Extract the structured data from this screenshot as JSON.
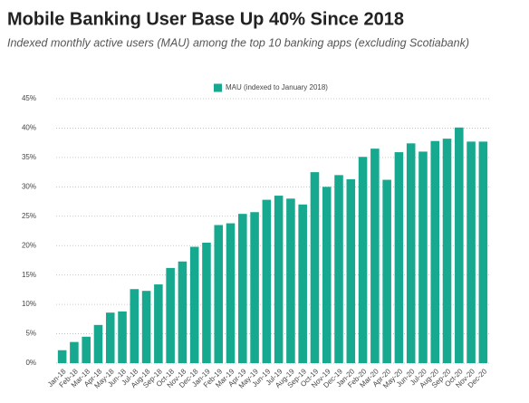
{
  "chart_data": {
    "type": "bar",
    "title": "Mobile Banking User Base Up 40% Since 2018",
    "subtitle": "Indexed monthly active users (MAU) among the top 10 banking apps (excluding Scotiabank)",
    "categories": [
      "Jan-18",
      "Feb-18",
      "Mar-18",
      "Apr-18",
      "May-18",
      "Jun-18",
      "Jul-18",
      "Aug-18",
      "Sep-18",
      "Oct-18",
      "Nov-18",
      "Dec-18",
      "Jan-19",
      "Feb-19",
      "Mar-19",
      "Apr-19",
      "May-19",
      "Jun-19",
      "Jul-19",
      "Aug-19",
      "Sep-19",
      "Oct-19",
      "Nov-19",
      "Dec-19",
      "Jan-20",
      "Feb-20",
      "Mar-20",
      "Apr-20",
      "May-20",
      "Jun-20",
      "Jul-20",
      "Aug-20",
      "Sep-20",
      "Oct-20",
      "Nov-20",
      "Dec-20"
    ],
    "series": [
      {
        "name": "MAU (indexed to January 2018)",
        "color": "#17a98f",
        "values": [
          2.2,
          3.6,
          4.5,
          6.5,
          8.6,
          8.8,
          12.6,
          12.3,
          13.4,
          16.2,
          17.3,
          19.8,
          20.5,
          23.5,
          23.8,
          25.4,
          25.7,
          27.8,
          28.5,
          28.0,
          27.0,
          32.5,
          30.0,
          32.0,
          31.3,
          35.1,
          36.5,
          31.2,
          35.9,
          37.4,
          36.0,
          37.8,
          38.2,
          40.1,
          37.7,
          37.7
        ]
      }
    ],
    "ylim": [
      0,
      45
    ],
    "yticks": [
      {
        "value": 0,
        "label": "0%"
      },
      {
        "value": 5,
        "label": "5%"
      },
      {
        "value": 10,
        "label": "10%"
      },
      {
        "value": 15,
        "label": "15%"
      },
      {
        "value": 20,
        "label": "20%"
      },
      {
        "value": 25,
        "label": "25%"
      },
      {
        "value": 30,
        "label": "30%"
      },
      {
        "value": 35,
        "label": "35%"
      },
      {
        "value": 40,
        "label": "40%"
      },
      {
        "value": 45,
        "label": "45%"
      }
    ],
    "grid": true,
    "legend": "top"
  }
}
